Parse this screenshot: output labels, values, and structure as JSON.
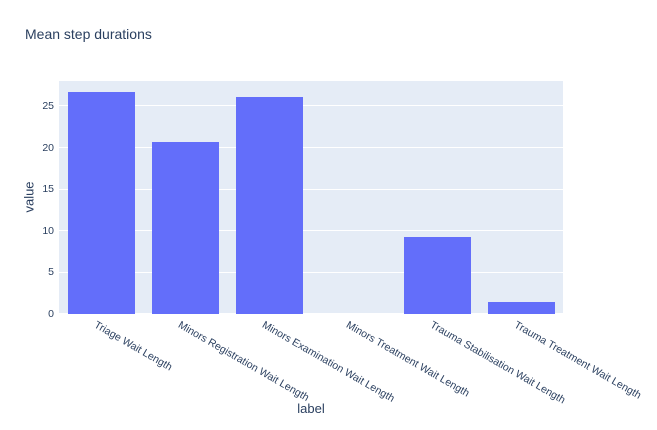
{
  "title": "Mean step durations",
  "chart_data": {
    "type": "bar",
    "title": "Mean step durations",
    "xlabel": "label",
    "ylabel": "value",
    "categories": [
      "Triage Wait Length",
      "Minors Registration Wait Length",
      "Minors Examination Wait Length",
      "Minors Treatment Wait Length",
      "Trauma Stabilisation Wait Length",
      "Trauma Treatment Wait Length"
    ],
    "values": [
      26.7,
      20.7,
      26.1,
      0,
      9.3,
      1.4
    ],
    "yticks": [
      0,
      5,
      10,
      15,
      20,
      25
    ],
    "ylim": [
      0,
      28.07
    ],
    "grid": true,
    "legend_visible": false,
    "tick_angle_deg": 30,
    "colors": {
      "bar": "#636EFA",
      "plot_background": "#E5ECF6",
      "gridline": "#FFFFFF",
      "text": "#2a3f5f",
      "page_background": "#FFFFFF"
    }
  }
}
